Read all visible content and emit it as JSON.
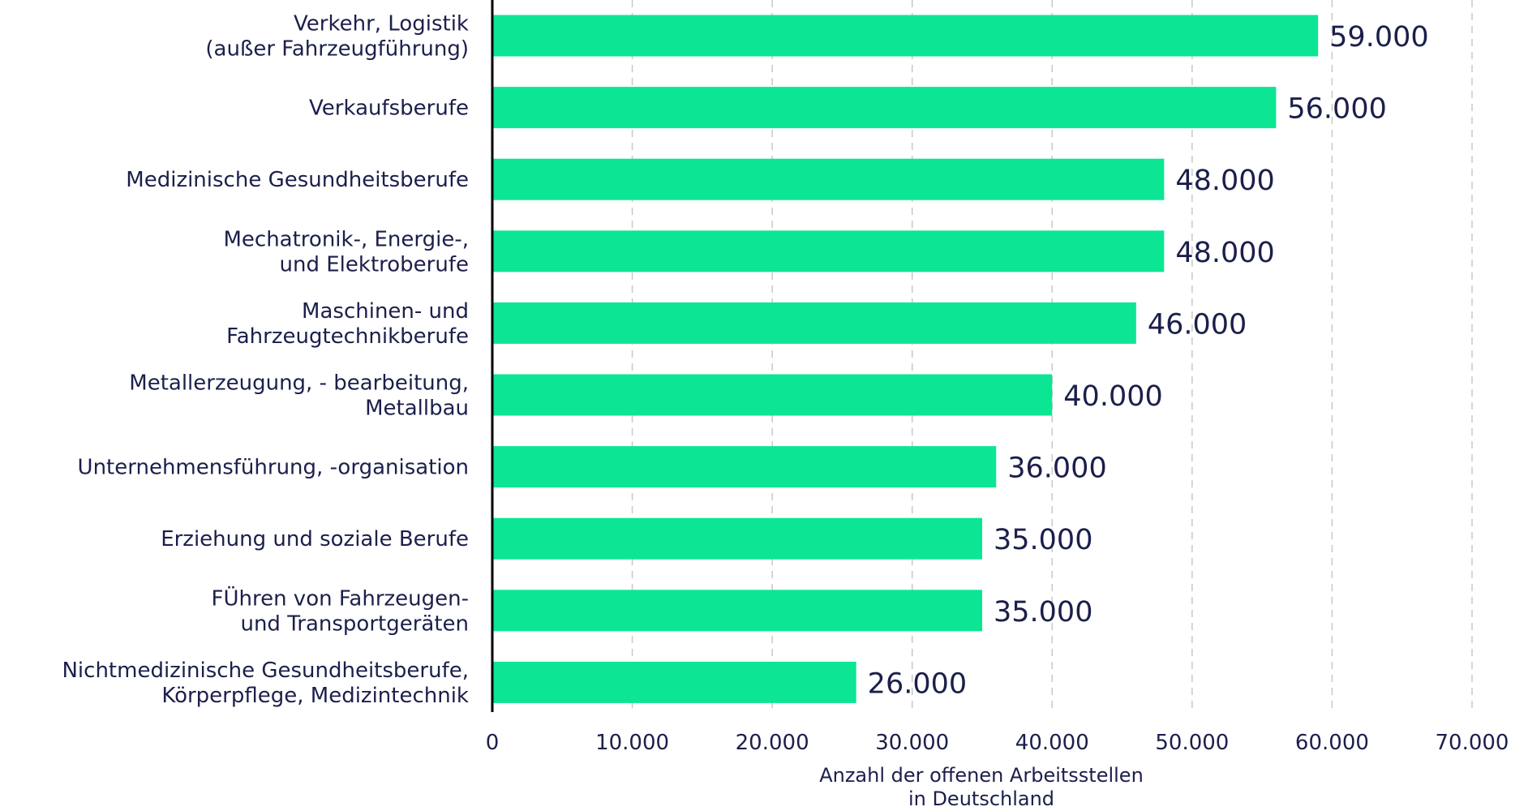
{
  "chart_data": {
    "type": "bar",
    "orientation": "horizontal",
    "categories": [
      [
        "Verkehr, Logistik",
        "(außer Fahrzeugführung)"
      ],
      [
        "Verkaufsberufe"
      ],
      [
        "Medizinische Gesundheitsberufe"
      ],
      [
        "Mechatronik-, Energie-,",
        "und Elektroberufe"
      ],
      [
        "Maschinen- und",
        "Fahrzeugtechnikberufe"
      ],
      [
        "Metallerzeugung, - bearbeitung,",
        "Metallbau"
      ],
      [
        "Unternehmensführung, -organisation"
      ],
      [
        "Erziehung und soziale Berufe"
      ],
      [
        "FÜhren von Fahrzeugen-",
        "und Transportgeräten"
      ],
      [
        "Nichtmedizinische Gesundheitsberufe,",
        "Körperpflege, Medizintechnik"
      ]
    ],
    "values": [
      59000,
      56000,
      48000,
      48000,
      46000,
      40000,
      36000,
      35000,
      35000,
      26000
    ],
    "value_labels": [
      "59.000",
      "56.000",
      "48.000",
      "48.000",
      "46.000",
      "40.000",
      "36.000",
      "35.000",
      "35.000",
      "26.000"
    ],
    "xticks": [
      0,
      10000,
      20000,
      30000,
      40000,
      50000,
      60000,
      70000
    ],
    "xtick_labels": [
      "0",
      "10.000",
      "20.000",
      "30.000",
      "40.000",
      "50.000",
      "60.000",
      "70.000"
    ],
    "xlim": [
      0,
      70000
    ],
    "xlabel": [
      "Anzahl der offenen Arbeitsstellen",
      "in Deutschland"
    ],
    "grid": "vertical dashed",
    "colors": {
      "bar": "#0ce694",
      "text": "#1b1f4b",
      "axis": "#000000",
      "grid": "#c8c8c8"
    }
  }
}
